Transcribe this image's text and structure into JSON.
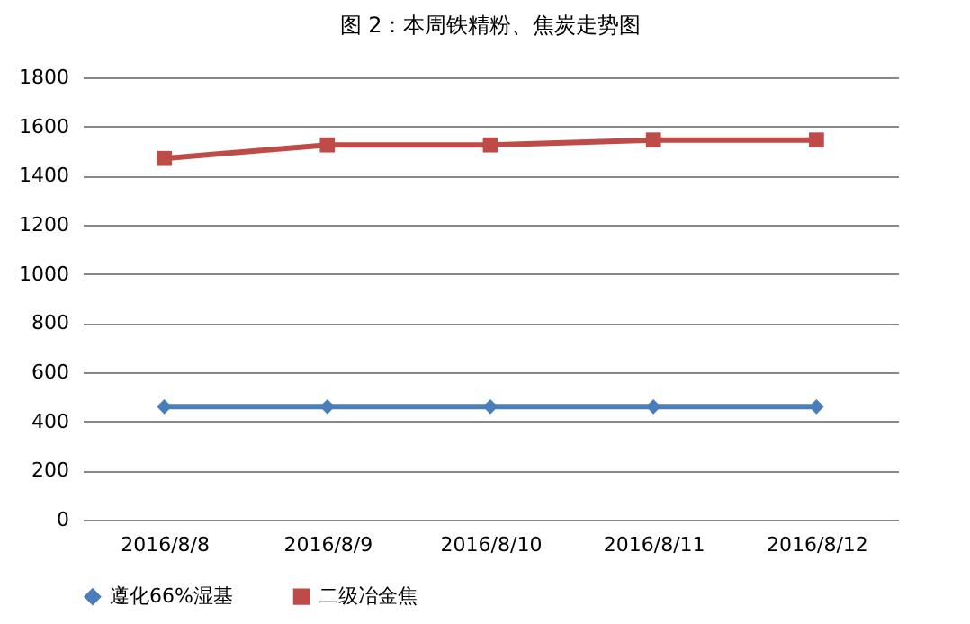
{
  "chart_data": {
    "type": "line",
    "title": "图 2：本周铁精粉、焦炭走势图",
    "categories": [
      "2016/8/8",
      "2016/8/9",
      "2016/8/10",
      "2016/8/11",
      "2016/8/12"
    ],
    "series": [
      {
        "name": "遵化66%湿基",
        "color": "#4a7ebb",
        "marker": "diamond",
        "values": [
          460,
          460,
          460,
          460,
          460
        ]
      },
      {
        "name": "二级冶金焦",
        "color": "#be4b48",
        "marker": "square",
        "values": [
          1470,
          1525,
          1525,
          1545,
          1545
        ]
      }
    ],
    "ylim": [
      0,
      1800
    ],
    "yticks": [
      0,
      200,
      400,
      600,
      800,
      1000,
      1200,
      1400,
      1600,
      1800
    ],
    "grid": "y",
    "legend": "bottom"
  }
}
